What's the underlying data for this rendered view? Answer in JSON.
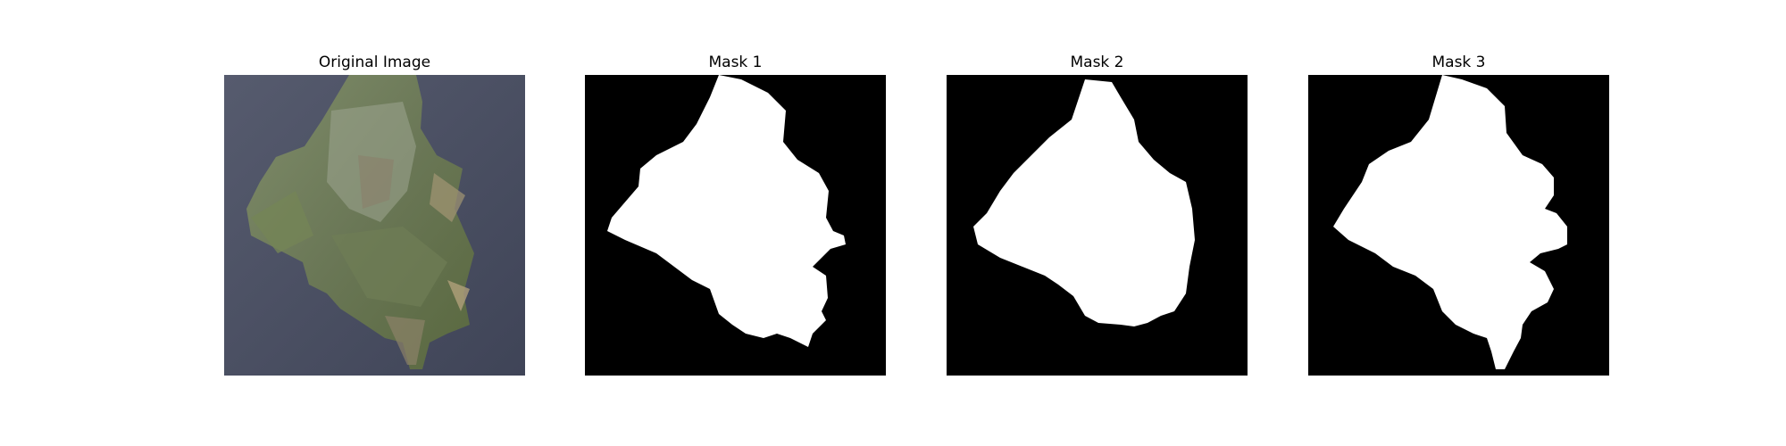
{
  "panels": [
    {
      "title": "Original Image",
      "content": "leaf-photo"
    },
    {
      "title": "Mask 1",
      "content": "binary-mask"
    },
    {
      "title": "Mask 2",
      "content": "binary-mask"
    },
    {
      "title": "Mask 3",
      "content": "binary-mask"
    }
  ],
  "colors": {
    "background": "#4a4f63",
    "leaf_dark": "#5d6a4a",
    "leaf_light": "#8f9a80",
    "leaf_brown": "#9a8a6a",
    "mask_bg": "#000000",
    "mask_fg": "#ffffff"
  }
}
